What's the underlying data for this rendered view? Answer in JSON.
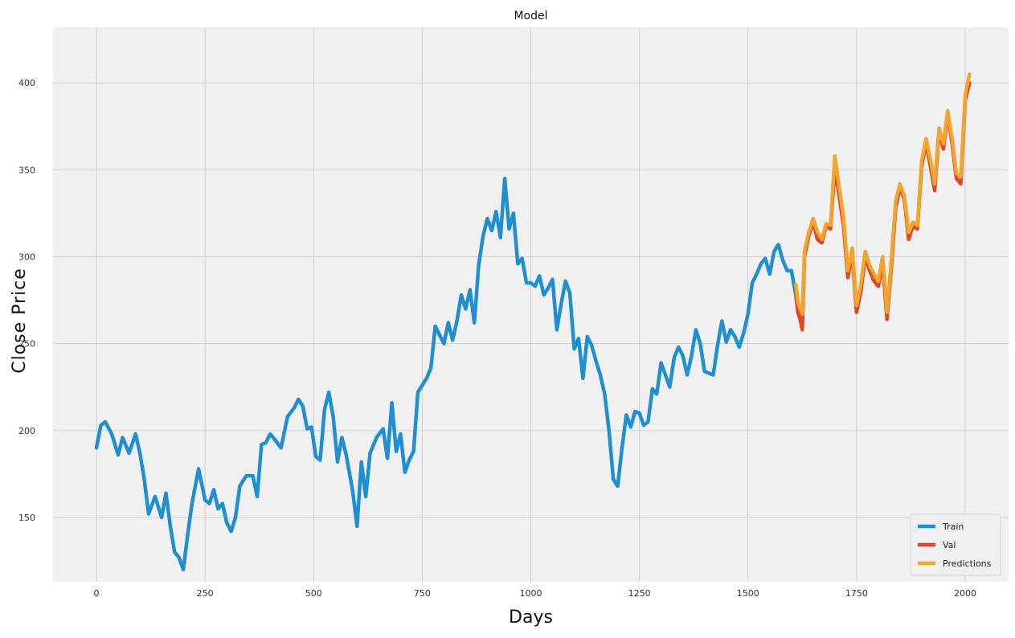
{
  "chart_data": {
    "type": "line",
    "title": "Model",
    "xlabel": "Days",
    "ylabel": "Close Price",
    "xlim": [
      -100,
      2100
    ],
    "ylim": [
      113,
      432
    ],
    "x_ticks": [
      0,
      250,
      500,
      750,
      1000,
      1250,
      1500,
      1750,
      2000
    ],
    "y_ticks": [
      150,
      200,
      250,
      300,
      350,
      400
    ],
    "grid": true,
    "legend_position": "bottom-right",
    "colors": {
      "Train": "#1f8fd1",
      "Val": "#e0452b",
      "Predictions": "#f0a52c"
    },
    "series": [
      {
        "name": "Train",
        "x": [
          0,
          10,
          20,
          35,
          50,
          60,
          75,
          90,
          100,
          110,
          120,
          135,
          150,
          160,
          170,
          180,
          190,
          200,
          210,
          220,
          235,
          250,
          260,
          270,
          280,
          290,
          300,
          310,
          320,
          330,
          345,
          360,
          370,
          380,
          390,
          400,
          410,
          425,
          440,
          455,
          465,
          475,
          485,
          495,
          505,
          515,
          525,
          535,
          545,
          555,
          565,
          575,
          590,
          600,
          610,
          620,
          630,
          645,
          660,
          670,
          680,
          690,
          700,
          710,
          720,
          730,
          740,
          750,
          760,
          770,
          780,
          790,
          800,
          810,
          820,
          830,
          840,
          850,
          860,
          870,
          880,
          890,
          900,
          910,
          920,
          930,
          940,
          950,
          960,
          970,
          980,
          990,
          1000,
          1010,
          1020,
          1030,
          1040,
          1050,
          1060,
          1070,
          1080,
          1090,
          1100,
          1110,
          1120,
          1130,
          1140,
          1150,
          1160,
          1170,
          1180,
          1190,
          1200,
          1210,
          1220,
          1230,
          1240,
          1250,
          1260,
          1270,
          1280,
          1290,
          1300,
          1310,
          1320,
          1330,
          1340,
          1350,
          1360,
          1370,
          1380,
          1390,
          1400,
          1410,
          1420,
          1430,
          1440,
          1450,
          1460,
          1470,
          1480,
          1490,
          1500,
          1510,
          1520,
          1530,
          1540,
          1550,
          1560,
          1570,
          1580,
          1590,
          1600,
          1610
        ],
        "y": [
          190,
          203,
          205,
          198,
          186,
          196,
          187,
          198,
          187,
          172,
          152,
          162,
          150,
          164,
          145,
          130,
          127,
          120,
          140,
          158,
          178,
          160,
          158,
          166,
          155,
          158,
          147,
          142,
          150,
          168,
          174,
          174,
          162,
          192,
          193,
          198,
          195,
          190,
          208,
          213,
          218,
          214,
          201,
          202,
          185,
          183,
          212,
          222,
          208,
          182,
          196,
          186,
          165,
          145,
          182,
          162,
          187,
          196,
          201,
          184,
          216,
          188,
          198,
          176,
          183,
          188,
          222,
          226,
          230,
          236,
          260,
          255,
          250,
          262,
          252,
          263,
          278,
          270,
          281,
          262,
          295,
          312,
          322,
          315,
          326,
          311,
          345,
          316,
          325,
          296,
          299,
          285,
          285,
          283,
          289,
          278,
          282,
          287,
          258,
          273,
          286,
          279,
          247,
          253,
          230,
          254,
          249,
          240,
          232,
          221,
          200,
          172,
          168,
          190,
          209,
          202,
          211,
          210,
          203,
          205,
          224,
          221,
          239,
          232,
          225,
          242,
          248,
          243,
          232,
          243,
          258,
          250,
          234,
          233,
          232,
          249,
          263,
          251,
          258,
          254,
          248,
          256,
          267,
          285,
          290,
          296,
          299,
          290,
          303,
          307,
          298,
          292,
          292,
          278
        ]
      },
      {
        "name": "Val",
        "x": [
          1610,
          1615,
          1620,
          1625,
          1630,
          1640,
          1650,
          1660,
          1670,
          1680,
          1690,
          1700,
          1710,
          1720,
          1730,
          1740,
          1750,
          1760,
          1770,
          1780,
          1790,
          1800,
          1810,
          1820,
          1830,
          1840,
          1850,
          1860,
          1870,
          1880,
          1890,
          1900,
          1910,
          1920,
          1930,
          1940,
          1950,
          1960,
          1970,
          1980,
          1990,
          2000,
          2010
        ],
        "y": [
          278,
          268,
          264,
          258,
          300,
          312,
          320,
          310,
          308,
          318,
          316,
          351,
          335,
          318,
          288,
          302,
          268,
          280,
          300,
          292,
          286,
          283,
          296,
          264,
          294,
          328,
          340,
          333,
          310,
          318,
          316,
          352,
          366,
          352,
          338,
          372,
          362,
          382,
          365,
          345,
          342,
          390,
          400
        ]
      },
      {
        "name": "Predictions",
        "x": [
          1610,
          1615,
          1620,
          1625,
          1630,
          1640,
          1650,
          1660,
          1670,
          1680,
          1690,
          1700,
          1710,
          1720,
          1730,
          1740,
          1750,
          1760,
          1770,
          1780,
          1790,
          1800,
          1810,
          1820,
          1830,
          1840,
          1850,
          1860,
          1870,
          1880,
          1890,
          1900,
          1910,
          1920,
          1930,
          1940,
          1950,
          1960,
          1970,
          1980,
          1990,
          2000,
          2010
        ],
        "y": [
          284,
          274,
          270,
          267,
          303,
          314,
          322,
          314,
          310,
          319,
          318,
          358,
          340,
          323,
          292,
          305,
          272,
          284,
          303,
          295,
          290,
          286,
          300,
          268,
          298,
          332,
          342,
          335,
          314,
          320,
          318,
          355,
          368,
          356,
          342,
          374,
          365,
          384,
          368,
          348,
          346,
          393,
          405
        ]
      }
    ]
  }
}
